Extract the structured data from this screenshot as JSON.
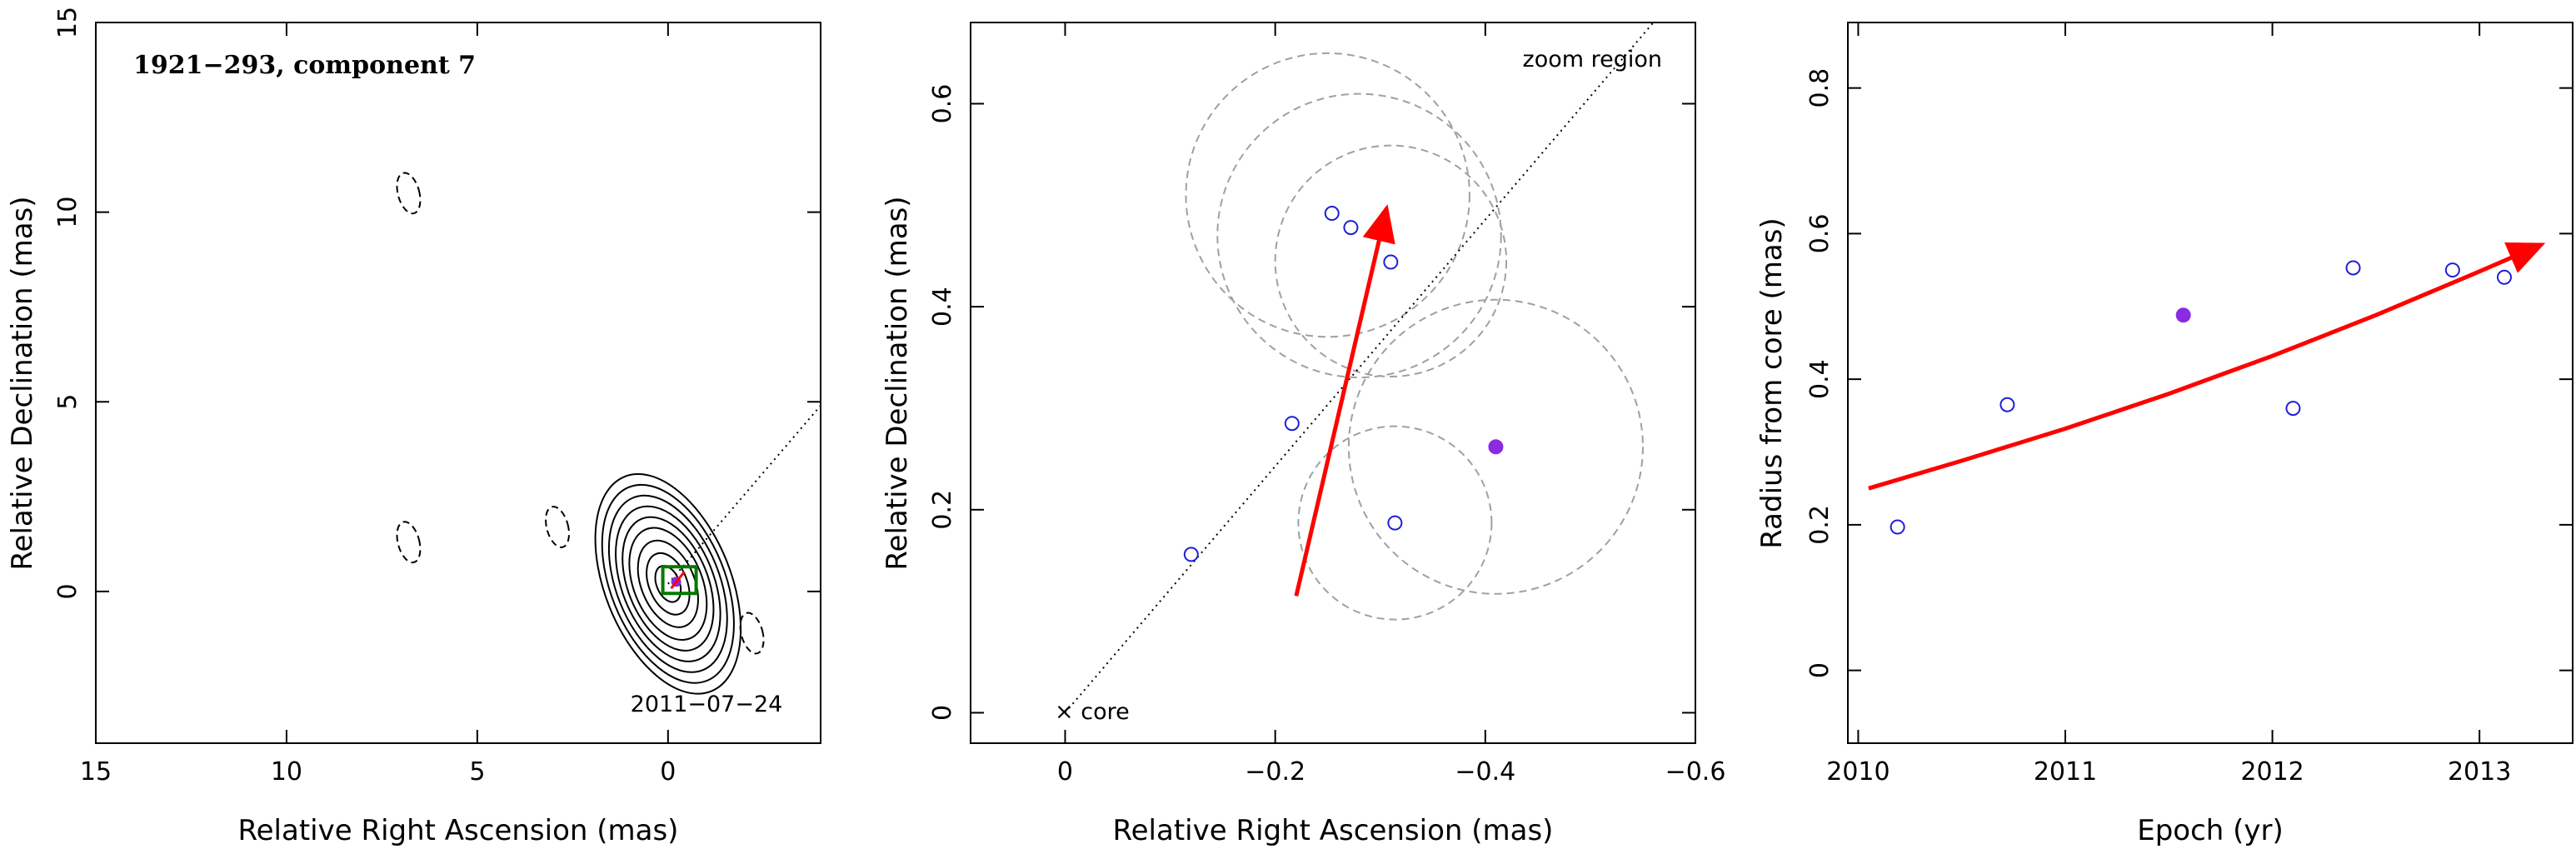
{
  "colors": {
    "arrow": "#ff0000",
    "open_marker": "#1f1fd6",
    "filled_marker": "#8a2be2",
    "circles": "#a0a0a0",
    "box": "#007a00"
  },
  "chart_data": [
    {
      "type": "contour",
      "title": "1921−293, component 7",
      "date_label": "2011−07−24",
      "xlabel": "Relative Right Ascension (mas)",
      "ylabel": "Relative Declination (mas)",
      "xlim": [
        15,
        -4
      ],
      "ylim": [
        -4,
        15
      ],
      "xticks": [
        15,
        10,
        5,
        0
      ],
      "xtick_labels": [
        "15",
        "10",
        "5",
        "0"
      ],
      "yticks": [
        0,
        5,
        10,
        15
      ],
      "ytick_labels": [
        "0",
        "5",
        "10",
        "15"
      ],
      "source_center": [
        0,
        0.2
      ],
      "contour_semi_axes": [
        [
          0.3,
          0.5
        ],
        [
          0.5,
          0.85
        ],
        [
          0.7,
          1.2
        ],
        [
          0.9,
          1.55
        ],
        [
          1.05,
          1.85
        ],
        [
          1.2,
          2.15
        ],
        [
          1.35,
          2.45
        ],
        [
          1.5,
          2.75
        ],
        [
          1.65,
          3.05
        ]
      ],
      "negative_contours": [
        [
          6.8,
          10.5
        ],
        [
          6.8,
          1.3
        ],
        [
          2.9,
          1.7
        ],
        [
          -2.2,
          -1.1
        ]
      ],
      "component_position": [
        -0.3,
        0.3
      ],
      "direction_line": {
        "from": [
          0,
          0.2
        ],
        "to": [
          -4,
          4.9
        ]
      }
    },
    {
      "type": "scatter",
      "title": "",
      "corner_label": "zoom region",
      "core_label": "core",
      "xlabel": "Relative Right Ascension (mas)",
      "ylabel": "Relative Declination (mas)",
      "xlim": [
        0.09,
        -0.6
      ],
      "ylim": [
        -0.03,
        0.68
      ],
      "xticks": [
        0,
        -0.2,
        -0.4,
        -0.6
      ],
      "xtick_labels": [
        "0",
        "−0.2",
        "−0.4",
        "−0.6"
      ],
      "yticks": [
        0,
        0.2,
        0.4,
        0.6
      ],
      "ytick_labels": [
        "0",
        "0.2",
        "0.4",
        "0.6"
      ],
      "open_points": [
        {
          "x": -0.12,
          "y": 0.156
        },
        {
          "x": -0.216,
          "y": 0.285
        },
        {
          "x": -0.254,
          "y": 0.492
        },
        {
          "x": -0.272,
          "y": 0.478
        },
        {
          "x": -0.31,
          "y": 0.444
        },
        {
          "x": -0.314,
          "y": 0.187
        }
      ],
      "filled_points": [
        {
          "x": -0.41,
          "y": 0.262
        }
      ],
      "uncertainty_circles": [
        {
          "x": -0.25,
          "y": 0.51,
          "r": 0.135
        },
        {
          "x": -0.28,
          "y": 0.47,
          "r": 0.135
        },
        {
          "x": -0.31,
          "y": 0.445,
          "r": 0.11
        },
        {
          "x": -0.41,
          "y": 0.262,
          "r": 0.14
        },
        {
          "x": -0.314,
          "y": 0.187,
          "r": 0.092
        }
      ],
      "trend_line": {
        "from": [
          0,
          0
        ],
        "to": [
          -0.56,
          0.68
        ]
      },
      "velocity_arrow": {
        "from": [
          -0.22,
          0.115
        ],
        "to": [
          -0.306,
          0.497
        ]
      }
    },
    {
      "type": "scatter",
      "title": "",
      "xlabel": "Epoch (yr)",
      "ylabel": "Radius from core (mas)",
      "xlim": [
        2009.95,
        2013.45
      ],
      "ylim": [
        -0.1,
        0.89
      ],
      "xticks": [
        2010,
        2011,
        2012,
        2013
      ],
      "xtick_labels": [
        "2010",
        "2011",
        "2012",
        "2013"
      ],
      "yticks": [
        0,
        0.2,
        0.4,
        0.6,
        0.8
      ],
      "ytick_labels": [
        "0",
        "0.2",
        "0.4",
        "0.6",
        "0.8"
      ],
      "open_points": [
        {
          "x": 2010.19,
          "y": 0.197
        },
        {
          "x": 2010.72,
          "y": 0.365
        },
        {
          "x": 2012.1,
          "y": 0.36
        },
        {
          "x": 2012.39,
          "y": 0.553
        },
        {
          "x": 2012.87,
          "y": 0.55
        },
        {
          "x": 2013.12,
          "y": 0.54
        }
      ],
      "filled_points": [
        {
          "x": 2011.57,
          "y": 0.488
        }
      ],
      "fit_curve": [
        {
          "x": 2010.05,
          "y": 0.25
        },
        {
          "x": 2010.5,
          "y": 0.288
        },
        {
          "x": 2011.0,
          "y": 0.332
        },
        {
          "x": 2011.5,
          "y": 0.38
        },
        {
          "x": 2012.0,
          "y": 0.432
        },
        {
          "x": 2012.5,
          "y": 0.488
        },
        {
          "x": 2013.0,
          "y": 0.548
        },
        {
          "x": 2013.3,
          "y": 0.585
        }
      ]
    }
  ]
}
